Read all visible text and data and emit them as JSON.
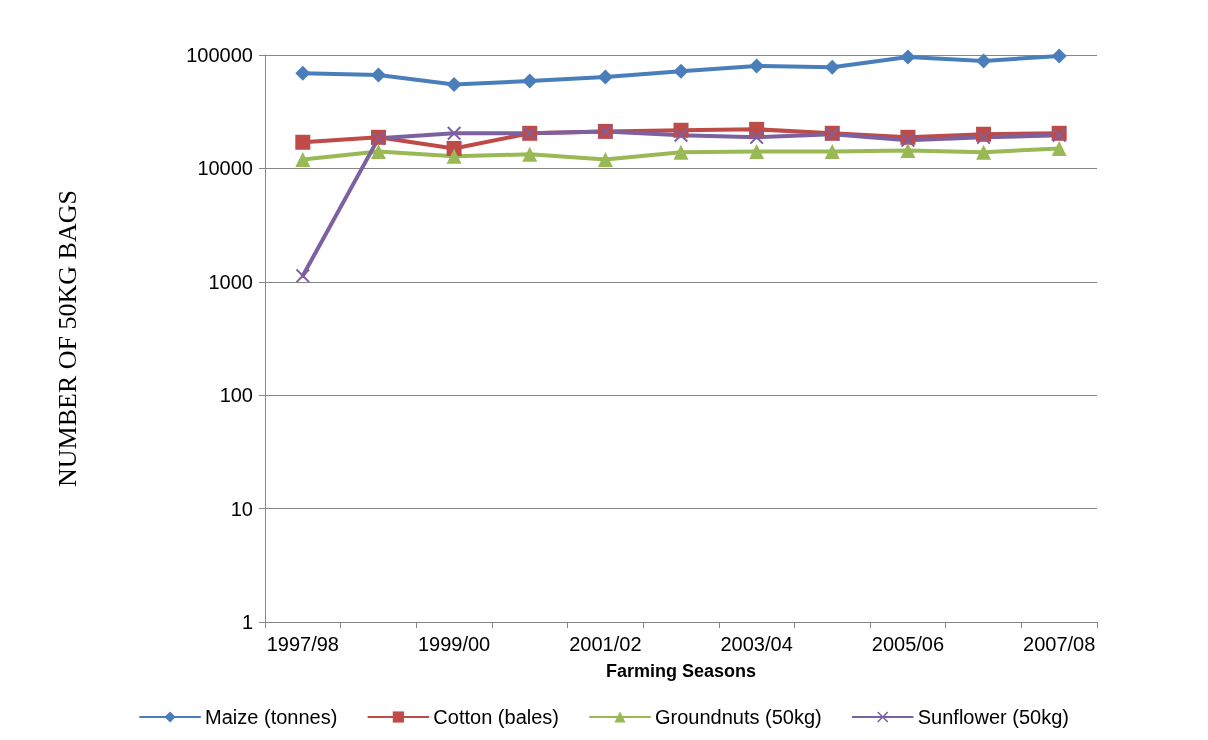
{
  "chart_data": {
    "type": "line",
    "xlabel": "Farming Seasons",
    "ylabel": "NUMBER OF 50KG BAGS",
    "categories": [
      "1997/98",
      null,
      "1999/00",
      null,
      "2001/02",
      null,
      "2003/04",
      null,
      "2005/06",
      null,
      "2007/08"
    ],
    "series": [
      {
        "name": "Maize (tonnes)",
        "color": "#4a7ebb",
        "marker": "diamond",
        "values": [
          69000,
          66500,
          55000,
          59000,
          64000,
          72000,
          80000,
          78000,
          96000,
          88500,
          98000
        ]
      },
      {
        "name": "Cotton (bales)",
        "color": "#be4b48",
        "marker": "square",
        "values": [
          17000,
          18800,
          15000,
          20400,
          21200,
          21700,
          22100,
          20400,
          18800,
          20000,
          20400
        ]
      },
      {
        "name": "Groundnuts (50kg)",
        "color": "#98b954",
        "marker": "triangle",
        "values": [
          12000,
          14100,
          12800,
          13300,
          12000,
          13900,
          14100,
          14100,
          14400,
          13900,
          15000
        ]
      },
      {
        "name": "Sunflower (50kg)",
        "color": "#7d60a0",
        "marker": "cross",
        "values": [
          1130,
          18400,
          20400,
          20400,
          21200,
          19600,
          18800,
          20000,
          17700,
          18800,
          19600
        ]
      }
    ],
    "log": true,
    "ylim": [
      1,
      100000
    ],
    "yticks": [
      1,
      10,
      100,
      1000,
      10000,
      100000
    ],
    "grid": "y",
    "legend": "bottom",
    "line_style": "solid"
  }
}
